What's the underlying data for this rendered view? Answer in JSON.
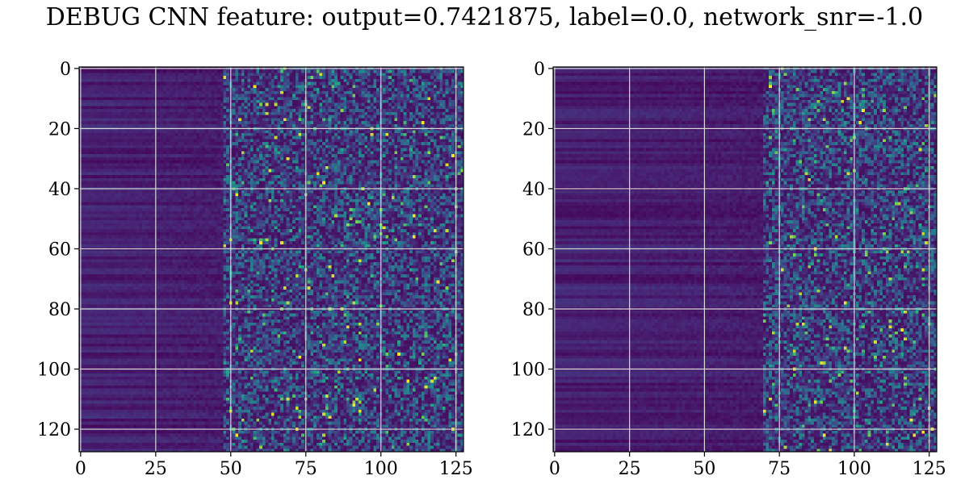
{
  "figure": {
    "title": "DEBUG CNN feature: output=0.7421875, label=0.0, network_snr=-1.0"
  },
  "colors": {
    "cmap_low": "#440154",
    "cmap_mid": "#21918c",
    "cmap_high": "#fde725",
    "grid": "#d8d8d8"
  },
  "chart_data": [
    {
      "type": "heatmap",
      "name": "",
      "rows": 128,
      "cols": 128,
      "xlim": [
        0,
        127
      ],
      "ylim": [
        127,
        0
      ],
      "xticks": [
        0,
        25,
        50,
        75,
        100,
        125
      ],
      "yticks": [
        0,
        20,
        40,
        60,
        80,
        100,
        120
      ],
      "grid": true,
      "colormap": "viridis",
      "value_range": [
        0,
        1
      ],
      "low_activity_cols": [
        0,
        48
      ],
      "high_activity_cols": [
        48,
        127
      ]
    },
    {
      "type": "heatmap",
      "name": "",
      "rows": 128,
      "cols": 128,
      "xlim": [
        0,
        127
      ],
      "ylim": [
        127,
        0
      ],
      "xticks": [
        0,
        25,
        50,
        75,
        100,
        125
      ],
      "yticks": [
        0,
        20,
        40,
        60,
        80,
        100,
        120
      ],
      "grid": true,
      "colormap": "viridis",
      "value_range": [
        0,
        1
      ],
      "low_activity_cols": [
        0,
        70
      ],
      "high_activity_cols": [
        70,
        127
      ]
    }
  ]
}
